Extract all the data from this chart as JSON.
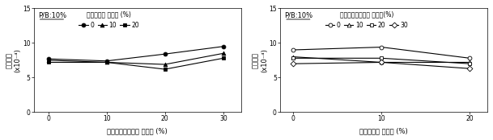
{
  "chart1": {
    "title_label": "P/B:10%",
    "legend_title": "플라이애시 치환율 (%)",
    "xlabel": "고로슬래그미분말 치환율 (%)",
    "xticklabels": [
      0,
      10,
      20,
      30
    ],
    "xlim": [
      -2.5,
      33
    ],
    "ylim": [
      0,
      15
    ],
    "yticks": [
      0,
      5,
      10,
      15
    ],
    "series": [
      {
        "label": "0",
        "marker": "o",
        "filled": true,
        "x": [
          0,
          10,
          20,
          30
        ],
        "y": [
          7.7,
          7.4,
          8.4,
          9.5
        ]
      },
      {
        "label": "10",
        "marker": "^",
        "filled": true,
        "x": [
          0,
          10,
          20,
          30
        ],
        "y": [
          7.5,
          7.2,
          6.9,
          8.5
        ]
      },
      {
        "label": "20",
        "marker": "s",
        "filled": true,
        "x": [
          0,
          10,
          20,
          30
        ],
        "y": [
          7.2,
          7.2,
          6.2,
          7.8
        ]
      }
    ]
  },
  "chart2": {
    "title_label": "P/B:10%",
    "legend_title": "고로슬래그미분말 치환율(%)",
    "xlabel": "플라이애시 치환율 (%)",
    "xticklabels": [
      0,
      10,
      20
    ],
    "xlim": [
      -1.5,
      22
    ],
    "ylim": [
      0,
      15
    ],
    "yticks": [
      0,
      5,
      10,
      15
    ],
    "series": [
      {
        "label": "0",
        "marker": "o",
        "filled": false,
        "x": [
          0,
          10,
          20
        ],
        "y": [
          9.0,
          9.4,
          7.8
        ]
      },
      {
        "label": "10",
        "marker": "^",
        "filled": false,
        "x": [
          0,
          10,
          20
        ],
        "y": [
          8.0,
          7.2,
          7.2
        ]
      },
      {
        "label": "20",
        "marker": "s",
        "filled": false,
        "x": [
          0,
          10,
          20
        ],
        "y": [
          7.8,
          7.8,
          7.0
        ]
      },
      {
        "label": "30",
        "marker": "D",
        "filled": false,
        "x": [
          0,
          10,
          20
        ],
        "y": [
          7.0,
          7.2,
          6.3
        ]
      }
    ]
  },
  "font_size": 6.0,
  "tick_font_size": 5.5,
  "line_color": "black",
  "line_width": 0.8,
  "marker_size": 3.5
}
